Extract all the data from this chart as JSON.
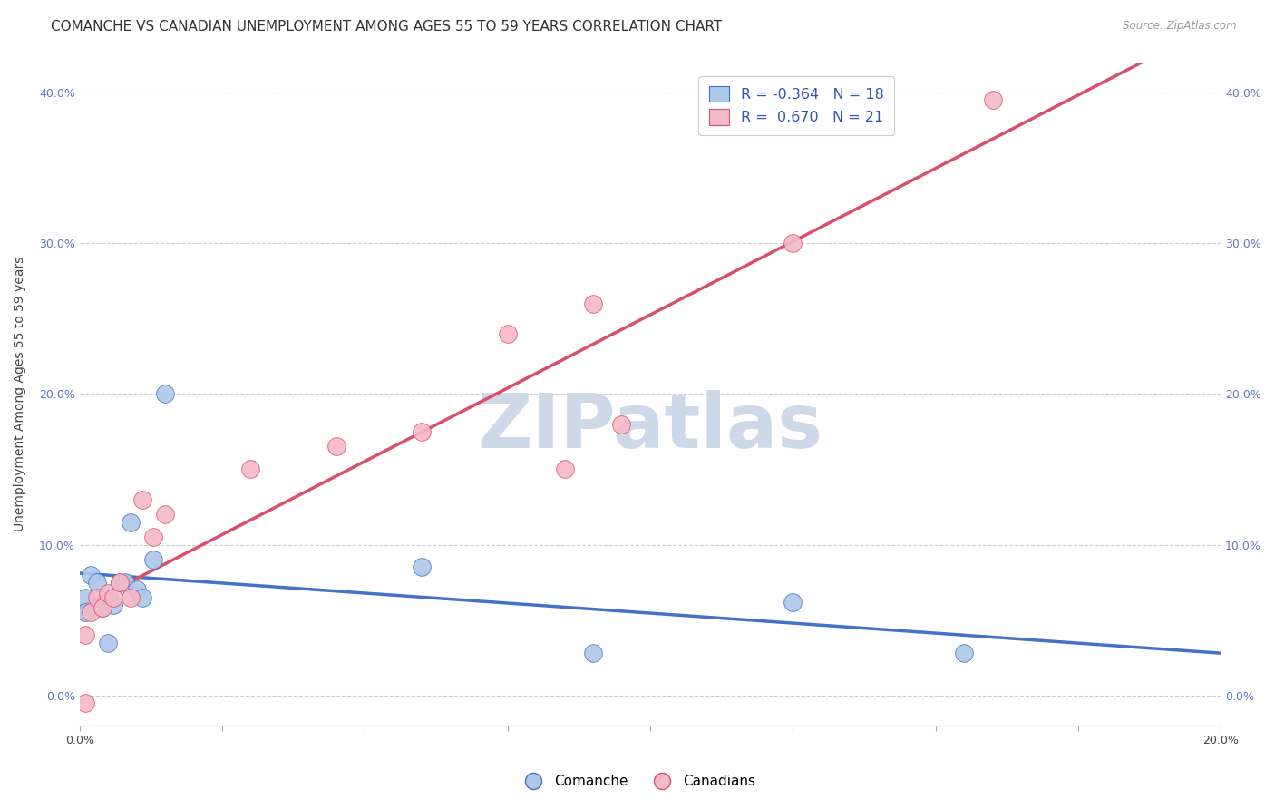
{
  "title": "COMANCHE VS CANADIAN UNEMPLOYMENT AMONG AGES 55 TO 59 YEARS CORRELATION CHART",
  "source": "Source: ZipAtlas.com",
  "ylabel": "Unemployment Among Ages 55 to 59 years",
  "xlim": [
    0.0,
    0.2
  ],
  "ylim": [
    -0.02,
    0.42
  ],
  "xticks": [
    0.0,
    0.025,
    0.05,
    0.075,
    0.1,
    0.125,
    0.15,
    0.175,
    0.2
  ],
  "xtick_labels": [
    "0.0%",
    "",
    "",
    "",
    "",
    "",
    "",
    "",
    "20.0%"
  ],
  "yticks": [
    0.0,
    0.1,
    0.2,
    0.3,
    0.4
  ],
  "ytick_labels": [
    "0.0%",
    "10.0%",
    "20.0%",
    "30.0%",
    "40.0%"
  ],
  "comanche_color": "#adc8e8",
  "canadians_color": "#f5b8c8",
  "line_blue": "#4472c4",
  "line_pink": "#d94f6e",
  "legend_r_blue": "-0.364",
  "legend_n_blue": "18",
  "legend_r_pink": "0.670",
  "legend_n_pink": "21",
  "comanche_x": [
    0.001,
    0.001,
    0.002,
    0.003,
    0.004,
    0.005,
    0.006,
    0.007,
    0.008,
    0.009,
    0.01,
    0.011,
    0.013,
    0.015,
    0.06,
    0.09,
    0.125,
    0.155
  ],
  "comanche_y": [
    0.065,
    0.055,
    0.08,
    0.075,
    0.058,
    0.035,
    0.06,
    0.075,
    0.075,
    0.115,
    0.07,
    0.065,
    0.09,
    0.2,
    0.085,
    0.028,
    0.062,
    0.028
  ],
  "canadians_x": [
    0.001,
    0.001,
    0.002,
    0.003,
    0.004,
    0.005,
    0.006,
    0.007,
    0.009,
    0.011,
    0.013,
    0.015,
    0.03,
    0.045,
    0.06,
    0.075,
    0.085,
    0.09,
    0.095,
    0.125,
    0.16
  ],
  "canadians_y": [
    -0.005,
    0.04,
    0.055,
    0.065,
    0.058,
    0.068,
    0.065,
    0.075,
    0.065,
    0.13,
    0.105,
    0.12,
    0.15,
    0.165,
    0.175,
    0.24,
    0.15,
    0.26,
    0.18,
    0.3,
    0.395
  ],
  "background_color": "#ffffff",
  "grid_color": "#cccccc",
  "title_fontsize": 11,
  "axis_label_fontsize": 10,
  "tick_fontsize": 9,
  "watermark": "ZIPatlas",
  "watermark_color": "#cdd9e8",
  "legend_text_color": "#3355bb"
}
